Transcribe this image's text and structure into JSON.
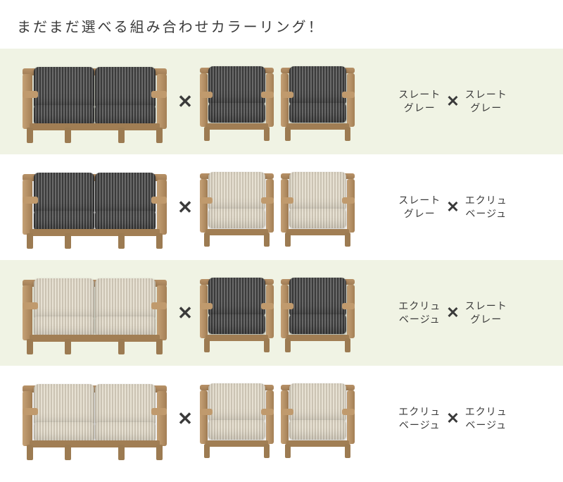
{
  "header": "まだまだ選べる組み合わせカラーリング！",
  "x_mark": "✕",
  "colors": {
    "grey": {
      "label": "スレート\nグレー"
    },
    "beige": {
      "label": "エクリュ\nベージュ"
    }
  },
  "palette": {
    "row_alt_bg": "#f0f3e4",
    "text": "#3a3a3a",
    "wood": "#a47f55"
  },
  "rows": [
    {
      "bg": "alt",
      "sofa": "grey",
      "chairs": "grey",
      "label_left": "grey",
      "label_right": "grey"
    },
    {
      "bg": "plain",
      "sofa": "grey",
      "chairs": "beige",
      "label_left": "grey",
      "label_right": "beige"
    },
    {
      "bg": "alt",
      "sofa": "beige",
      "chairs": "grey",
      "label_left": "beige",
      "label_right": "grey"
    },
    {
      "bg": "plain",
      "sofa": "beige",
      "chairs": "beige",
      "label_left": "beige",
      "label_right": "beige"
    }
  ]
}
